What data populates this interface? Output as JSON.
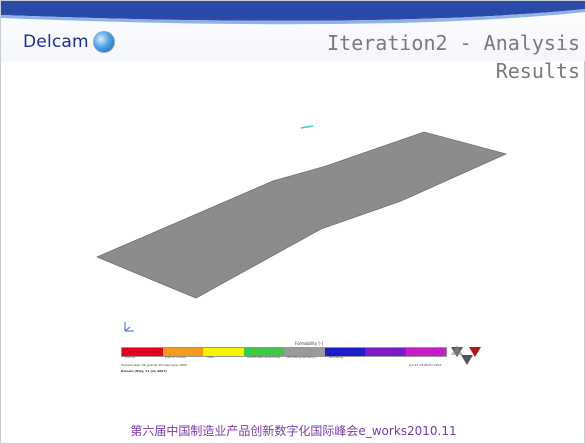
{
  "header": {
    "logo_text": "Delcam",
    "logo_icon": "globe-icon",
    "title_line1": "Iteration2 - Analysis",
    "title_line2": "Results"
  },
  "legend": {
    "title": "Formability [-]",
    "colors": [
      "#e0001c",
      "#f49a1c",
      "#f7f400",
      "#3ec84a",
      "#9a9a9a",
      "#1c1cc8",
      "#7a1cc8",
      "#c81cc8"
    ],
    "segment_labels": [
      "Cracks",
      "Risk of cracks",
      "Safe",
      "Insufficient stretching",
      "Wrinkling tendency",
      "Wrinkling",
      "",
      ""
    ],
    "note_left_1": "Process step: 90_gravity   Process type: DDM",
    "note_left_2": "Delcam [Italy, 11 Jun 2007]",
    "note_right": "Jun 11 15:06:57 2007"
  },
  "footer": {
    "text": "第六届中国制造业产品创新数字化国际峰会e_works2010.11"
  }
}
